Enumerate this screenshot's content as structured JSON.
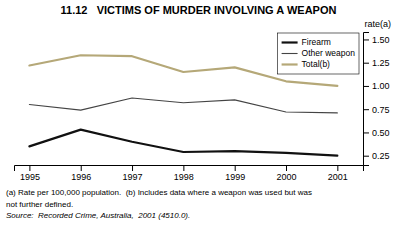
{
  "chart_data": {
    "type": "line",
    "title": "11.12   VICTIMS OF MURDER INVOLVING A WEAPON",
    "y_label": "rate(a)",
    "x": [
      1995,
      1996,
      1997,
      1998,
      1999,
      2000,
      2001
    ],
    "series": [
      {
        "name": "Firearm",
        "color": "#111111",
        "values": [
          0.35,
          0.53,
          0.4,
          0.29,
          0.3,
          0.28,
          0.25
        ]
      },
      {
        "name": "Other weapon",
        "color": "#444444",
        "values": [
          0.8,
          0.74,
          0.87,
          0.82,
          0.85,
          0.72,
          0.71
        ]
      },
      {
        "name": "Total(b)",
        "color": "#b5a878",
        "values": [
          1.22,
          1.33,
          1.32,
          1.15,
          1.2,
          1.05,
          1.0
        ]
      }
    ],
    "xlim": [
      1994.7,
      2001.5
    ],
    "xticks": [
      1995,
      1996,
      1997,
      1998,
      1999,
      2000,
      2001
    ],
    "ylim": [
      0.15,
      1.58
    ],
    "yticks": [
      0.25,
      {
        "value": 0.5,
        "label": "0.50"
      },
      0.75,
      {
        "value": 1,
        "label": "1.00"
      },
      1.25,
      {
        "value": 1.5,
        "label": "1.50"
      }
    ],
    "grid": false,
    "legend": "upper right",
    "annotations": [
      "(a) Rate per 100,000 population.  (b) Includes data where a weapon was used but was",
      "not further defined.",
      "Source:  Recorded Crime, Australia,  2001 (4510.0)."
    ]
  }
}
